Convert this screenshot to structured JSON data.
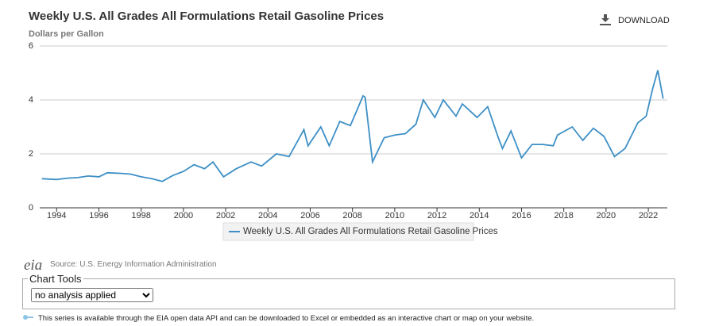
{
  "chart_data": {
    "type": "line",
    "title": "Weekly U.S. All Grades All Formulations Retail Gasoline Prices",
    "subtitle": "Dollars per Gallon",
    "x": [
      1993.3,
      1994.0,
      1994.5,
      1995.0,
      1995.5,
      1996.0,
      1996.4,
      1997.0,
      1997.5,
      1998.0,
      1998.5,
      1999.0,
      1999.5,
      2000.0,
      2000.5,
      2001.0,
      2001.4,
      2001.9,
      2002.5,
      2003.2,
      2003.7,
      2004.4,
      2005.0,
      2005.7,
      2005.9,
      2006.5,
      2006.9,
      2007.4,
      2007.9,
      2008.5,
      2008.6,
      2008.95,
      2009.5,
      2010.0,
      2010.5,
      2011.0,
      2011.35,
      2011.9,
      2012.3,
      2012.9,
      2013.2,
      2013.9,
      2014.4,
      2014.9,
      2015.1,
      2015.5,
      2016.0,
      2016.5,
      2017.0,
      2017.5,
      2017.7,
      2018.4,
      2018.9,
      2019.4,
      2019.9,
      2020.4,
      2020.9,
      2021.5,
      2021.9,
      2022.2,
      2022.45,
      2022.7
    ],
    "series": [
      {
        "name": "Weekly U.S. All Grades All Formulations Retail Gasoline Prices",
        "color": "#3d8fc6",
        "values": [
          1.08,
          1.05,
          1.1,
          1.12,
          1.18,
          1.15,
          1.3,
          1.28,
          1.25,
          1.15,
          1.08,
          0.98,
          1.2,
          1.35,
          1.6,
          1.45,
          1.7,
          1.15,
          1.45,
          1.7,
          1.55,
          2.0,
          1.9,
          2.9,
          2.3,
          3.0,
          2.3,
          3.2,
          3.05,
          4.15,
          4.1,
          1.7,
          2.6,
          2.7,
          2.75,
          3.1,
          4.0,
          3.35,
          4.0,
          3.4,
          3.85,
          3.35,
          3.75,
          2.6,
          2.2,
          2.85,
          1.85,
          2.35,
          2.35,
          2.3,
          2.7,
          3.0,
          2.5,
          2.95,
          2.65,
          1.9,
          2.2,
          3.15,
          3.4,
          4.4,
          5.1,
          4.05
        ]
      }
    ],
    "xlim": [
      1993.2,
      2022.9
    ],
    "xticks": [
      1994,
      1996,
      1998,
      2000,
      2002,
      2004,
      2006,
      2008,
      2010,
      2012,
      2014,
      2016,
      2018,
      2020,
      2022
    ],
    "ylim": [
      0,
      6
    ],
    "yticks": [
      0,
      2,
      4,
      6
    ],
    "grid": true
  },
  "download": "DOWNLOAD",
  "logo": "eia",
  "source": "Source: U.S. Energy Information Administration",
  "chart_tools": {
    "label": "Chart Tools",
    "option": "no analysis applied"
  },
  "note": "This series is available through the EIA open data API and can be downloaded to Excel or embedded as an interactive chart or map on your website."
}
